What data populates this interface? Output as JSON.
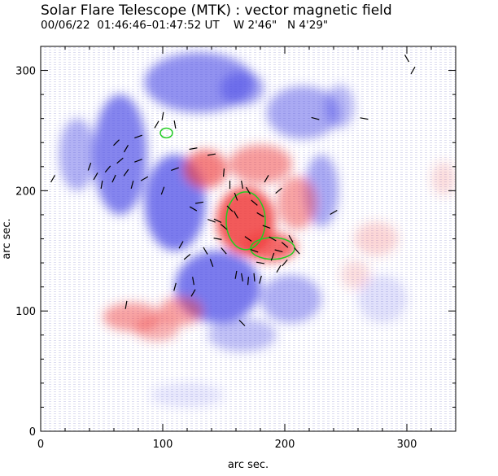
{
  "chart_data": {
    "type": "heatmap",
    "title": "Solar Flare Telescope (MTK) : vector magnetic field",
    "subtitle": {
      "date": "00/06/22",
      "time_range": "01:46:46–01:47:52 UT",
      "position": "W 2'46\"   N 4'29\""
    },
    "xlabel": "arc sec.",
    "ylabel": "arc sec.",
    "xlim": [
      0,
      340
    ],
    "ylim": [
      0,
      320
    ],
    "x_ticks": [
      0,
      100,
      200,
      300
    ],
    "y_ticks": [
      0,
      100,
      200,
      300
    ],
    "x_minor_step": 20,
    "y_minor_step": 20,
    "polarity_colors": {
      "positive": "#f03c3c",
      "negative": "#4a4ae6",
      "contour": "#22cc22",
      "vector": "#000000"
    },
    "positive_regions": [
      {
        "x": 168,
        "y": 175,
        "rx": 24,
        "ry": 28,
        "strength": 1.0
      },
      {
        "x": 188,
        "y": 153,
        "rx": 22,
        "ry": 12,
        "strength": 0.9
      },
      {
        "x": 135,
        "y": 218,
        "rx": 18,
        "ry": 16,
        "strength": 0.75
      },
      {
        "x": 180,
        "y": 222,
        "rx": 26,
        "ry": 16,
        "strength": 0.6
      },
      {
        "x": 210,
        "y": 190,
        "rx": 16,
        "ry": 22,
        "strength": 0.55
      },
      {
        "x": 75,
        "y": 95,
        "rx": 24,
        "ry": 12,
        "strength": 0.55
      },
      {
        "x": 115,
        "y": 100,
        "rx": 18,
        "ry": 12,
        "strength": 0.55
      },
      {
        "x": 95,
        "y": 85,
        "rx": 18,
        "ry": 10,
        "strength": 0.45
      },
      {
        "x": 275,
        "y": 160,
        "rx": 18,
        "ry": 14,
        "strength": 0.25
      },
      {
        "x": 258,
        "y": 130,
        "rx": 12,
        "ry": 12,
        "strength": 0.2
      },
      {
        "x": 330,
        "y": 210,
        "rx": 10,
        "ry": 14,
        "strength": 0.2
      }
    ],
    "negative_regions": [
      {
        "x": 65,
        "y": 230,
        "rx": 22,
        "ry": 50,
        "strength": 0.8
      },
      {
        "x": 110,
        "y": 190,
        "rx": 25,
        "ry": 40,
        "strength": 0.85
      },
      {
        "x": 145,
        "y": 120,
        "rx": 35,
        "ry": 30,
        "strength": 0.85
      },
      {
        "x": 130,
        "y": 290,
        "rx": 45,
        "ry": 25,
        "strength": 0.7
      },
      {
        "x": 215,
        "y": 265,
        "rx": 30,
        "ry": 22,
        "strength": 0.55
      },
      {
        "x": 165,
        "y": 285,
        "rx": 18,
        "ry": 14,
        "strength": 0.6
      },
      {
        "x": 230,
        "y": 200,
        "rx": 14,
        "ry": 30,
        "strength": 0.55
      },
      {
        "x": 205,
        "y": 110,
        "rx": 25,
        "ry": 20,
        "strength": 0.5
      },
      {
        "x": 30,
        "y": 230,
        "rx": 15,
        "ry": 30,
        "strength": 0.5
      },
      {
        "x": 245,
        "y": 270,
        "rx": 12,
        "ry": 18,
        "strength": 0.45
      },
      {
        "x": 165,
        "y": 80,
        "rx": 28,
        "ry": 14,
        "strength": 0.4
      },
      {
        "x": 280,
        "y": 110,
        "rx": 20,
        "ry": 20,
        "strength": 0.2
      },
      {
        "x": 120,
        "y": 30,
        "rx": 30,
        "ry": 10,
        "strength": 0.15
      }
    ],
    "contours": [
      {
        "x": 168,
        "y": 175,
        "rx": 16,
        "ry": 24
      },
      {
        "x": 190,
        "y": 152,
        "rx": 18,
        "ry": 9
      },
      {
        "x": 103,
        "y": 248,
        "rx": 5,
        "ry": 4
      }
    ],
    "vectors": [
      {
        "x": 40,
        "y": 220,
        "angle": 70
      },
      {
        "x": 45,
        "y": 212,
        "angle": 60
      },
      {
        "x": 50,
        "y": 205,
        "angle": 80
      },
      {
        "x": 55,
        "y": 218,
        "angle": 50
      },
      {
        "x": 60,
        "y": 210,
        "angle": 65
      },
      {
        "x": 65,
        "y": 225,
        "angle": 40
      },
      {
        "x": 70,
        "y": 215,
        "angle": 55
      },
      {
        "x": 75,
        "y": 205,
        "angle": 75
      },
      {
        "x": 70,
        "y": 235,
        "angle": 60
      },
      {
        "x": 62,
        "y": 240,
        "angle": 45
      },
      {
        "x": 85,
        "y": 210,
        "angle": 30
      },
      {
        "x": 80,
        "y": 225,
        "angle": 20
      },
      {
        "x": 100,
        "y": 262,
        "angle": 80
      },
      {
        "x": 110,
        "y": 255,
        "angle": 100
      },
      {
        "x": 95,
        "y": 255,
        "angle": 60
      },
      {
        "x": 125,
        "y": 235,
        "angle": 10
      },
      {
        "x": 130,
        "y": 190,
        "angle": 10
      },
      {
        "x": 125,
        "y": 185,
        "angle": 150
      },
      {
        "x": 140,
        "y": 175,
        "angle": 160
      },
      {
        "x": 150,
        "y": 170,
        "angle": 140
      },
      {
        "x": 145,
        "y": 160,
        "angle": 170
      },
      {
        "x": 150,
        "y": 150,
        "angle": 130
      },
      {
        "x": 160,
        "y": 195,
        "angle": 110
      },
      {
        "x": 165,
        "y": 205,
        "angle": 100
      },
      {
        "x": 170,
        "y": 200,
        "angle": 120
      },
      {
        "x": 175,
        "y": 190,
        "angle": 140
      },
      {
        "x": 180,
        "y": 180,
        "angle": 150
      },
      {
        "x": 185,
        "y": 170,
        "angle": 160
      },
      {
        "x": 160,
        "y": 180,
        "angle": 120
      },
      {
        "x": 155,
        "y": 185,
        "angle": 135
      },
      {
        "x": 170,
        "y": 160,
        "angle": 145
      },
      {
        "x": 175,
        "y": 150,
        "angle": 160
      },
      {
        "x": 180,
        "y": 140,
        "angle": 170
      },
      {
        "x": 190,
        "y": 160,
        "angle": 150
      },
      {
        "x": 195,
        "y": 150,
        "angle": 165
      },
      {
        "x": 200,
        "y": 155,
        "angle": 140
      },
      {
        "x": 205,
        "y": 160,
        "angle": 120
      },
      {
        "x": 210,
        "y": 150,
        "angle": 130
      },
      {
        "x": 160,
        "y": 130,
        "angle": 80
      },
      {
        "x": 165,
        "y": 128,
        "angle": 100
      },
      {
        "x": 170,
        "y": 125,
        "angle": 85
      },
      {
        "x": 175,
        "y": 128,
        "angle": 95
      },
      {
        "x": 180,
        "y": 126,
        "angle": 75
      },
      {
        "x": 195,
        "y": 135,
        "angle": 60
      },
      {
        "x": 200,
        "y": 140,
        "angle": 50
      },
      {
        "x": 190,
        "y": 145,
        "angle": 70
      },
      {
        "x": 140,
        "y": 140,
        "angle": 110
      },
      {
        "x": 135,
        "y": 150,
        "angle": 120
      },
      {
        "x": 120,
        "y": 145,
        "angle": 40
      },
      {
        "x": 115,
        "y": 155,
        "angle": 60
      },
      {
        "x": 155,
        "y": 205,
        "angle": 90
      },
      {
        "x": 150,
        "y": 215,
        "angle": 85
      },
      {
        "x": 185,
        "y": 210,
        "angle": 60
      },
      {
        "x": 195,
        "y": 200,
        "angle": 40
      },
      {
        "x": 125,
        "y": 125,
        "angle": 100
      },
      {
        "x": 110,
        "y": 120,
        "angle": 75
      },
      {
        "x": 240,
        "y": 182,
        "angle": 30
      },
      {
        "x": 110,
        "y": 218,
        "angle": 20
      },
      {
        "x": 100,
        "y": 200,
        "angle": 70
      },
      {
        "x": 70,
        "y": 105,
        "angle": 80
      },
      {
        "x": 125,
        "y": 115,
        "angle": 60
      },
      {
        "x": 165,
        "y": 90,
        "angle": 135
      },
      {
        "x": 225,
        "y": 260,
        "angle": 165
      },
      {
        "x": 265,
        "y": 260,
        "angle": 170
      },
      {
        "x": 300,
        "y": 310,
        "angle": 120
      },
      {
        "x": 305,
        "y": 300,
        "angle": 60
      },
      {
        "x": 10,
        "y": 210,
        "angle": 60
      },
      {
        "x": 80,
        "y": 245,
        "angle": 20
      },
      {
        "x": 140,
        "y": 230,
        "angle": 10
      },
      {
        "x": 145,
        "y": 175,
        "angle": 155
      }
    ]
  }
}
